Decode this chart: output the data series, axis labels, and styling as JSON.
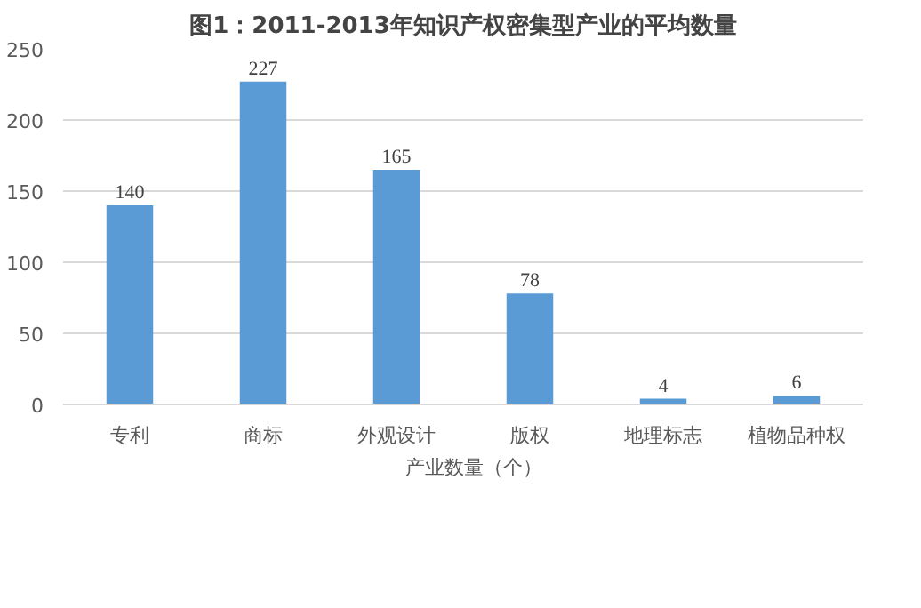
{
  "chart_data": {
    "type": "bar",
    "title": "图1：2011-2013年知识产权密集型产业的平均数量",
    "categories": [
      "专利",
      "商标",
      "外观设计",
      "版权",
      "地理标志",
      "植物品种权"
    ],
    "series": [
      {
        "name": "产业数量（个）",
        "color": "#5b9bd5",
        "values": [
          140,
          227,
          165,
          78,
          4,
          6
        ]
      }
    ],
    "ylim": [
      0,
      250
    ],
    "yticks": [
      0,
      50,
      100,
      150,
      200,
      250
    ],
    "grid": "y",
    "legend": "bottom",
    "data_labels": true
  }
}
